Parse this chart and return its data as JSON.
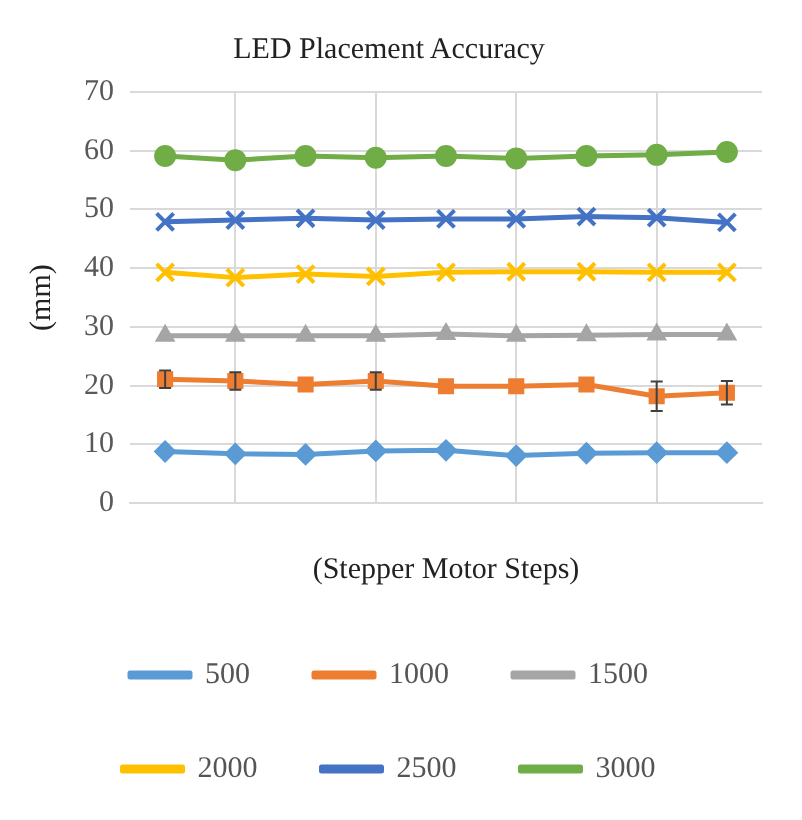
{
  "chart_data": {
    "type": "line",
    "title": "LED Placement Accuracy",
    "xlabel": "(Stepper Motor Steps)",
    "ylabel": "(mm)",
    "categories": [
      null,
      null,
      null,
      null,
      null,
      null,
      null,
      null,
      null
    ],
    "ylim": [
      0,
      70
    ],
    "yticks": [
      0,
      10,
      20,
      30,
      40,
      50,
      60,
      70
    ],
    "grid": true,
    "legend": "bottom",
    "series": [
      {
        "name": "500",
        "color": "#5b9bd5",
        "marker": "diamond",
        "values": [
          8.8,
          8.4,
          8.3,
          8.9,
          9,
          8.1,
          8.5,
          8.6,
          8.6
        ]
      },
      {
        "name": "1000",
        "color": "#ed7d31",
        "marker": "square",
        "values": [
          21.1,
          20.8,
          20.2,
          20.8,
          19.9,
          19.9,
          20.2,
          18.2,
          18.8
        ],
        "errors": [
          1.5,
          1.5,
          null,
          1.5,
          null,
          null,
          null,
          2.5,
          2
        ]
      },
      {
        "name": "1500",
        "color": "#a5a5a5",
        "marker": "triangle",
        "values": [
          28.5,
          28.5,
          28.5,
          28.5,
          28.8,
          28.5,
          28.6,
          28.7,
          28.7
        ]
      },
      {
        "name": "2000",
        "color": "#ffc000",
        "marker": "cross",
        "values": [
          39.3,
          38.4,
          39,
          38.6,
          39.3,
          39.4,
          39.4,
          39.3,
          39.3
        ]
      },
      {
        "name": "2500",
        "color": "#4472c4",
        "marker": "cross",
        "values": [
          47.9,
          48.2,
          48.5,
          48.2,
          48.4,
          48.4,
          48.8,
          48.6,
          47.8
        ]
      },
      {
        "name": "3000",
        "color": "#70ad47",
        "marker": "circle",
        "values": [
          59.1,
          58.4,
          59.1,
          58.8,
          59.1,
          58.7,
          59.1,
          59.3,
          59.8
        ]
      }
    ]
  }
}
